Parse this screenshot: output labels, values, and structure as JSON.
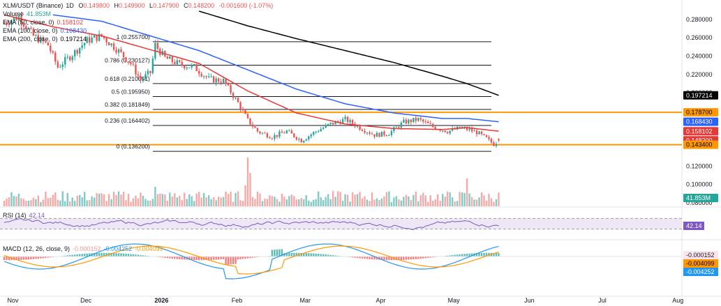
{
  "header": {
    "symbol": "XLM/USDT (Binance)",
    "interval": "1D",
    "o_label": "O",
    "o": "0.149800",
    "h_label": "H",
    "h": "0.149900",
    "l_label": "L",
    "l": "0.147900",
    "c_label": "C",
    "c": "0.148200",
    "change": "-0.001600 (-1.07%)",
    "change_color": "#ef5350"
  },
  "legend": {
    "volume": {
      "label": "Volume",
      "value": "41.853M"
    },
    "ema50": {
      "label": "EMA (50, close, 0)",
      "value": "0.158102",
      "color": "#e53935"
    },
    "ema100": {
      "label": "EMA (100, close, 0)",
      "value": "0.168430",
      "color": "#2962ff"
    },
    "ema200": {
      "label": "EMA (200, close, 0)",
      "value": "0.197214",
      "color": "#000000"
    },
    "rsi": {
      "label": "RSI (14)",
      "value": "42.14",
      "color": "#7e57c2"
    },
    "macd": {
      "label": "MACD (12, 26, close, 9)",
      "hist": "-0.000152",
      "macd": "-0.004252",
      "signal": "-0.004099"
    }
  },
  "chart_data": {
    "type": "candlestick",
    "x_labels": [
      "Nov",
      "Dec",
      "2026",
      "Feb",
      "Mar",
      "Apr",
      "May",
      "Jun",
      "Jul",
      "Aug"
    ],
    "y_ticks": [
      "0.280000",
      "0.260000",
      "0.240000",
      "0.220000",
      "0.200000",
      "0.120000",
      "0.100000",
      "0.080000"
    ],
    "ylim": [
      0.077,
      0.289
    ],
    "price_badges": [
      {
        "value": "0.197214",
        "bg": "#000000",
        "fg": "#ffffff"
      },
      {
        "value": "0.178700",
        "bg": "#ff9800",
        "fg": "#000000"
      },
      {
        "value": "0.168430",
        "bg": "#2962ff",
        "fg": "#ffffff"
      },
      {
        "value": "0.158102",
        "bg": "#e53935",
        "fg": "#ffffff"
      },
      {
        "value": "0.148200",
        "bg": "#e53935",
        "fg": "#ffffff"
      },
      {
        "value": "0.143400",
        "bg": "#ff9800",
        "fg": "#000000"
      },
      {
        "value": "41.853M",
        "bg": "#26a69a",
        "fg": "#ffffff"
      }
    ],
    "horizontal_levels": [
      {
        "value": 0.1787,
        "color": "#ff9800"
      },
      {
        "value": 0.1434,
        "color": "#ff9800"
      }
    ],
    "fibonacci": [
      {
        "label": "1 (0.255700)",
        "value": 0.2557
      },
      {
        "label": "0.786 (0.230127)",
        "value": 0.230127
      },
      {
        "label": "0.618 (0.210051)",
        "value": 0.210051
      },
      {
        "label": "0.5 (0.195950)",
        "value": 0.19595
      },
      {
        "label": "0.382 (0.181849)",
        "value": 0.181849
      },
      {
        "label": "0.236 (0.164402)",
        "value": 0.164402
      },
      {
        "label": "0 (0.136200)",
        "value": 0.1362
      }
    ],
    "fib_range_days": [
      61,
      200
    ],
    "days_total": 310,
    "days_shown": 204,
    "closes_anchor": [
      [
        0,
        0.276
      ],
      [
        6,
        0.283
      ],
      [
        12,
        0.262
      ],
      [
        18,
        0.252
      ],
      [
        22,
        0.228
      ],
      [
        28,
        0.242
      ],
      [
        34,
        0.257
      ],
      [
        40,
        0.262
      ],
      [
        46,
        0.248
      ],
      [
        52,
        0.232
      ],
      [
        56,
        0.214
      ],
      [
        60,
        0.222
      ],
      [
        62,
        0.252
      ],
      [
        66,
        0.238
      ],
      [
        72,
        0.231
      ],
      [
        78,
        0.228
      ],
      [
        84,
        0.215
      ],
      [
        90,
        0.213
      ],
      [
        96,
        0.189
      ],
      [
        100,
        0.17
      ],
      [
        104,
        0.158
      ],
      [
        110,
        0.152
      ],
      [
        116,
        0.158
      ],
      [
        122,
        0.148
      ],
      [
        128,
        0.158
      ],
      [
        134,
        0.166
      ],
      [
        140,
        0.171
      ],
      [
        146,
        0.162
      ],
      [
        152,
        0.154
      ],
      [
        158,
        0.156
      ],
      [
        164,
        0.168
      ],
      [
        170,
        0.171
      ],
      [
        176,
        0.163
      ],
      [
        182,
        0.158
      ],
      [
        188,
        0.162
      ],
      [
        194,
        0.157
      ],
      [
        198,
        0.15
      ],
      [
        201,
        0.144
      ],
      [
        203,
        0.1482
      ]
    ],
    "ema50_anchor": [
      [
        0,
        0.285
      ],
      [
        20,
        0.272
      ],
      [
        40,
        0.262
      ],
      [
        60,
        0.247
      ],
      [
        80,
        0.232
      ],
      [
        100,
        0.202
      ],
      [
        120,
        0.178
      ],
      [
        140,
        0.166
      ],
      [
        160,
        0.161
      ],
      [
        180,
        0.16
      ],
      [
        190,
        0.162
      ],
      [
        203,
        0.158102
      ]
    ],
    "ema100_anchor": [
      [
        20,
        0.285
      ],
      [
        40,
        0.278
      ],
      [
        60,
        0.262
      ],
      [
        80,
        0.246
      ],
      [
        100,
        0.225
      ],
      [
        120,
        0.204
      ],
      [
        140,
        0.188
      ],
      [
        160,
        0.178
      ],
      [
        180,
        0.172
      ],
      [
        190,
        0.172
      ],
      [
        203,
        0.16843
      ]
    ],
    "ema200_anchor": [
      [
        80,
        0.289
      ],
      [
        100,
        0.273
      ],
      [
        120,
        0.259
      ],
      [
        140,
        0.246
      ],
      [
        160,
        0.233
      ],
      [
        180,
        0.218
      ],
      [
        190,
        0.21
      ],
      [
        203,
        0.197214
      ]
    ],
    "rsi_bounds": [
      30,
      70
    ],
    "macd_zero_color": "#ef9a9a"
  }
}
